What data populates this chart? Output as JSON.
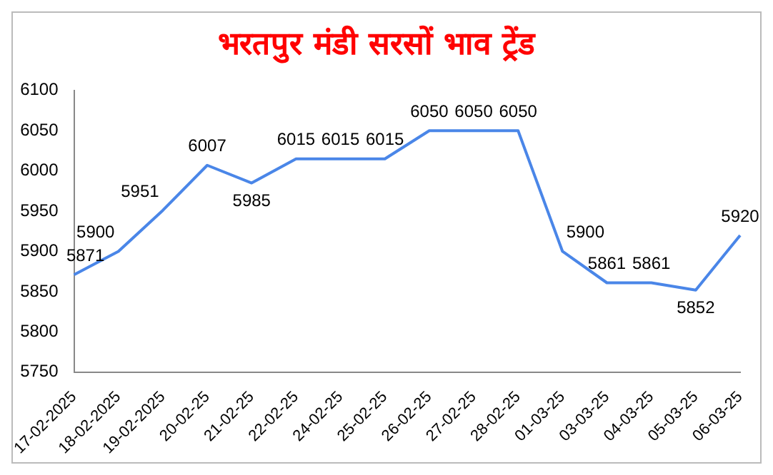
{
  "chart_data": {
    "type": "line",
    "title": "भरतपुर मंडी सरसों भाव ट्रेंड",
    "categories": [
      "17-02-2025",
      "18-02-2025",
      "19-02-2025",
      "20-02-25",
      "21-02-25",
      "22-02-25",
      "24-02-25",
      "25-02-25",
      "26-02-25",
      "27-02-25",
      "28-02-25",
      "01-03-25",
      "03-03-25",
      "04-03-25",
      "05-03-25",
      "06-03-25"
    ],
    "values": [
      5871,
      5900,
      5951,
      6007,
      5985,
      6015,
      6015,
      6015,
      6050,
      6050,
      6050,
      5900,
      5861,
      5861,
      5852,
      5920
    ],
    "color": "#4a86e8",
    "ylim": [
      5750,
      6100
    ],
    "yticks": [
      5750,
      5800,
      5850,
      5900,
      5950,
      6000,
      6050,
      6100
    ],
    "grid": false,
    "legend": false,
    "marker": "none",
    "line_style": "solid",
    "data_labels": true
  }
}
